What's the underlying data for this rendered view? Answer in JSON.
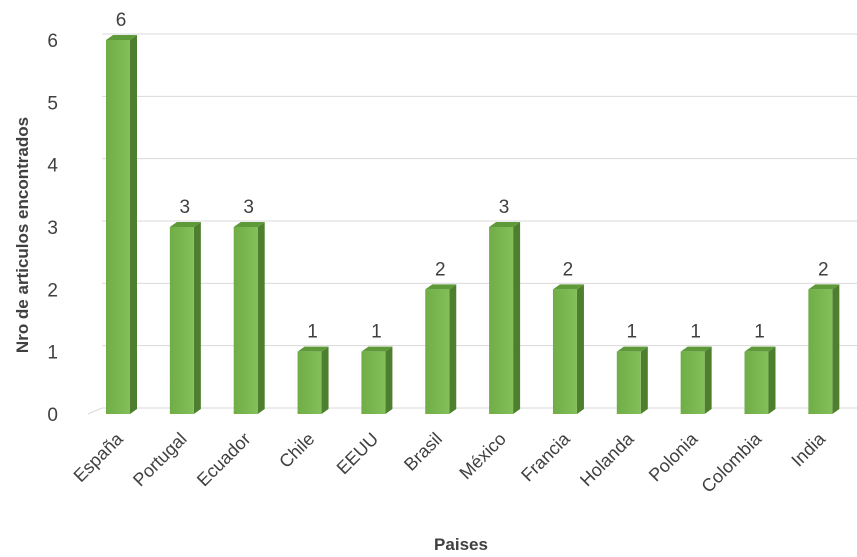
{
  "chart_data": {
    "type": "bar",
    "categories": [
      "España",
      "Portugal",
      "Ecuador",
      "Chile",
      "EEUU",
      "Brasil",
      "México",
      "Francia",
      "Holanda",
      "Polonia",
      "Colombia",
      "India"
    ],
    "values": [
      6,
      3,
      3,
      1,
      1,
      2,
      3,
      2,
      1,
      1,
      1,
      2
    ],
    "xlabel": "Paises",
    "ylabel": "Nro de articulos encontrados",
    "ylim": [
      0,
      6
    ],
    "yticks": [
      0,
      1,
      2,
      3,
      4,
      5,
      6
    ],
    "grid": true,
    "legend": "none",
    "style": "3d-bar",
    "colors": {
      "bar_front": "#70ad47",
      "bar_front_light": "#84c05a",
      "bar_side": "#4e7f2f",
      "bar_top": "#5f9a3a",
      "text": "#404040",
      "grid": "#d9d9d9"
    }
  }
}
